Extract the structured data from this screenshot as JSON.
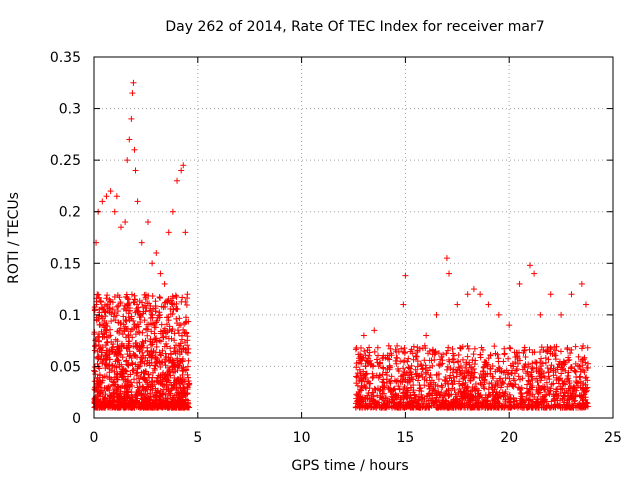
{
  "chart_data": {
    "type": "scatter",
    "title": "Day 262 of 2014, Rate Of TEC Index for receiver mar7",
    "xlabel": "GPS time / hours",
    "ylabel": "ROTI / TECUs",
    "xlim": [
      0,
      25
    ],
    "ylim": [
      0,
      0.35
    ],
    "x_ticks": [
      "0",
      "5",
      "10",
      "15",
      "20",
      "25"
    ],
    "y_ticks": [
      "0",
      "0.05",
      "0.1",
      "0.15",
      "0.2",
      "0.25",
      "0.3",
      "0.35"
    ],
    "x_tick_values": [
      0,
      5,
      10,
      15,
      20,
      25
    ],
    "y_tick_values": [
      0,
      0.05,
      0.1,
      0.15,
      0.2,
      0.25,
      0.3,
      0.35
    ],
    "grid": true,
    "marker": "+",
    "color": "#ff0000",
    "series": [
      {
        "name": "ROTI",
        "segments": [
          {
            "x_range": [
              0.0,
              4.6
            ],
            "y_range": [
              0.01,
              0.12
            ],
            "density": 1400
          },
          {
            "x_range": [
              12.6,
              23.8
            ],
            "y_range": [
              0.01,
              0.07
            ],
            "density": 1600
          }
        ],
        "points": [
          [
            0.1,
            0.17
          ],
          [
            0.2,
            0.2
          ],
          [
            0.4,
            0.21
          ],
          [
            0.6,
            0.215
          ],
          [
            0.8,
            0.22
          ],
          [
            1.0,
            0.2
          ],
          [
            1.1,
            0.215
          ],
          [
            1.3,
            0.185
          ],
          [
            1.5,
            0.19
          ],
          [
            1.6,
            0.25
          ],
          [
            1.7,
            0.27
          ],
          [
            1.8,
            0.29
          ],
          [
            1.85,
            0.315
          ],
          [
            1.9,
            0.325
          ],
          [
            1.95,
            0.26
          ],
          [
            2.0,
            0.24
          ],
          [
            2.1,
            0.21
          ],
          [
            2.3,
            0.17
          ],
          [
            2.6,
            0.19
          ],
          [
            2.8,
            0.15
          ],
          [
            3.0,
            0.16
          ],
          [
            3.2,
            0.14
          ],
          [
            3.4,
            0.13
          ],
          [
            3.6,
            0.18
          ],
          [
            3.8,
            0.2
          ],
          [
            4.0,
            0.23
          ],
          [
            4.2,
            0.24
          ],
          [
            4.3,
            0.245
          ],
          [
            4.4,
            0.18
          ],
          [
            4.5,
            0.12
          ],
          [
            13.0,
            0.08
          ],
          [
            13.5,
            0.085
          ],
          [
            14.2,
            0.07
          ],
          [
            14.9,
            0.11
          ],
          [
            15.0,
            0.138
          ],
          [
            15.5,
            0.06
          ],
          [
            16.0,
            0.08
          ],
          [
            16.5,
            0.1
          ],
          [
            17.0,
            0.155
          ],
          [
            17.1,
            0.14
          ],
          [
            17.5,
            0.11
          ],
          [
            18.0,
            0.12
          ],
          [
            18.3,
            0.125
          ],
          [
            18.6,
            0.12
          ],
          [
            19.0,
            0.11
          ],
          [
            19.5,
            0.1
          ],
          [
            20.0,
            0.09
          ],
          [
            20.5,
            0.13
          ],
          [
            21.0,
            0.148
          ],
          [
            21.2,
            0.14
          ],
          [
            21.5,
            0.1
          ],
          [
            22.0,
            0.12
          ],
          [
            22.5,
            0.1
          ],
          [
            23.0,
            0.12
          ],
          [
            23.5,
            0.13
          ],
          [
            23.7,
            0.11
          ]
        ]
      }
    ]
  }
}
